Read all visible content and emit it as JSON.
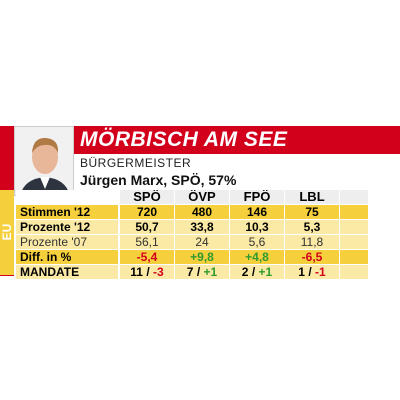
{
  "header": {
    "title": "MÖRBISCH AM SEE",
    "region": "EU",
    "role": "BÜRGERMEISTER",
    "mayor": "Jürgen Marx, SPÖ, 57%"
  },
  "table": {
    "columns": [
      "SPÖ",
      "ÖVP",
      "FPÖ",
      "LBL"
    ],
    "rows": [
      {
        "label": "Stimmen '12",
        "cells": [
          "720",
          "480",
          "146",
          "75"
        ]
      },
      {
        "label": "Prozente '12",
        "cells": [
          "50,7",
          "33,8",
          "10,3",
          "5,3"
        ]
      },
      {
        "label": "Prozente '07",
        "cells": [
          "56,1",
          "24",
          "5,6",
          "11,8"
        ]
      },
      {
        "label": "Diff. in %",
        "cells": [
          "-5,4",
          "+9,8",
          "+4,8",
          "-6,5"
        ]
      }
    ],
    "mandate": {
      "label": "MANDATE",
      "separator": "/",
      "cells": [
        {
          "seats": "11",
          "change": "-3"
        },
        {
          "seats": "7",
          "change": "+1"
        },
        {
          "seats": "2",
          "change": "+1"
        },
        {
          "seats": "1",
          "change": "-1"
        }
      ]
    }
  }
}
